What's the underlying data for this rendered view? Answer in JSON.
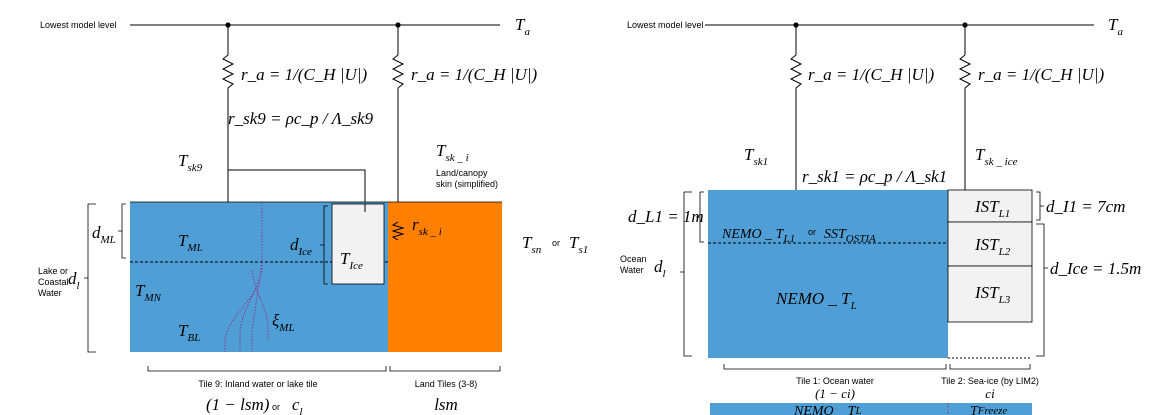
{
  "colors": {
    "water": "#4f9fd6",
    "land": "#ff7f00",
    "ice": "#f2f2f2",
    "line": "#000000",
    "profile": "#8c3a8c"
  },
  "left": {
    "lowest_level": "Lowest model level",
    "ta": {
      "main": "T",
      "sub": "a"
    },
    "ra1": "r_a = 1/(C_H |U|)",
    "ra2": "r_a = 1/(C_H |U|)",
    "rsk9": "r_sk9 = ρc_p / Λ_sk9",
    "tsk9": {
      "main": "T",
      "sub": "sk9"
    },
    "tsk_i": {
      "main": "T",
      "sub": "sk _ i"
    },
    "land_skin": [
      "Land/canopy",
      "skin (simplified)"
    ],
    "rsk_i": {
      "main": "r",
      "sub": "sk _ i"
    },
    "dml": {
      "main": "d",
      "sub": "ML"
    },
    "dice": {
      "main": "d",
      "sub": "Ice"
    },
    "tml": {
      "main": "T",
      "sub": "ML"
    },
    "tice": {
      "main": "T",
      "sub": "Ice"
    },
    "tmn": {
      "main": "T",
      "sub": "MN"
    },
    "tbl": {
      "main": "T",
      "sub": "BL"
    },
    "xi": {
      "main": "ξ",
      "sub": "ML"
    },
    "dl": {
      "main": "d",
      "sub": "l"
    },
    "lake_label": [
      "Lake or",
      "Coastal",
      "Water"
    ],
    "tsn": {
      "main": "T",
      "sub": "sn"
    },
    "or_word": "or",
    "ts1": {
      "main": "T",
      "sub": "s1"
    },
    "tile9": "Tile 9: Inland water or lake tile",
    "land_tiles": "Land Tiles (3-8)",
    "frac1": "(1 − lsm)",
    "frac_or": "or",
    "cl": {
      "main": "c",
      "sub": "l"
    },
    "lsm": "lsm"
  },
  "right": {
    "lowest_level": "Lowest model level",
    "ta": {
      "main": "T",
      "sub": "a"
    },
    "ra1": "r_a = 1/(C_H |U|)",
    "ra2": "r_a = 1/(C_H |U|)",
    "tsk1": {
      "main": "T",
      "sub": "sk1"
    },
    "rsk1": "r_sk1 = ρc_p / Λ_sk1",
    "tsk_ice": {
      "main": "T",
      "sub": "sk _ ice"
    },
    "dl1": "d_L1 = 1m",
    "nemo_tl1": {
      "main": "NEMO _ T",
      "sub": "L1"
    },
    "or_word": "or",
    "sst": {
      "main": "SST",
      "sub": "OSTIA"
    },
    "ocean_label": [
      "Ocean",
      "Water"
    ],
    "dl": {
      "main": "d",
      "sub": "l"
    },
    "nemo_tl": {
      "main": "NEMO _ T",
      "sub": "L"
    },
    "ist1": {
      "main": "IST",
      "sub": "L1"
    },
    "ist2": {
      "main": "IST",
      "sub": "L2"
    },
    "ist3": {
      "main": "IST",
      "sub": "L3"
    },
    "di1": "d_I1 = 7cm",
    "dice": "d_Ice = 1.5m",
    "tile1": "Tile 1: Ocean water",
    "tile2": "Tile 2: Sea-ice (by LIM2)",
    "frac1": "(1 − ci)",
    "ci": "ci",
    "nemo_tl_bottom": {
      "main": "NEMO _ T",
      "sub": "L"
    },
    "tfreeze": {
      "main": "T",
      "sub": "Freeze"
    }
  }
}
